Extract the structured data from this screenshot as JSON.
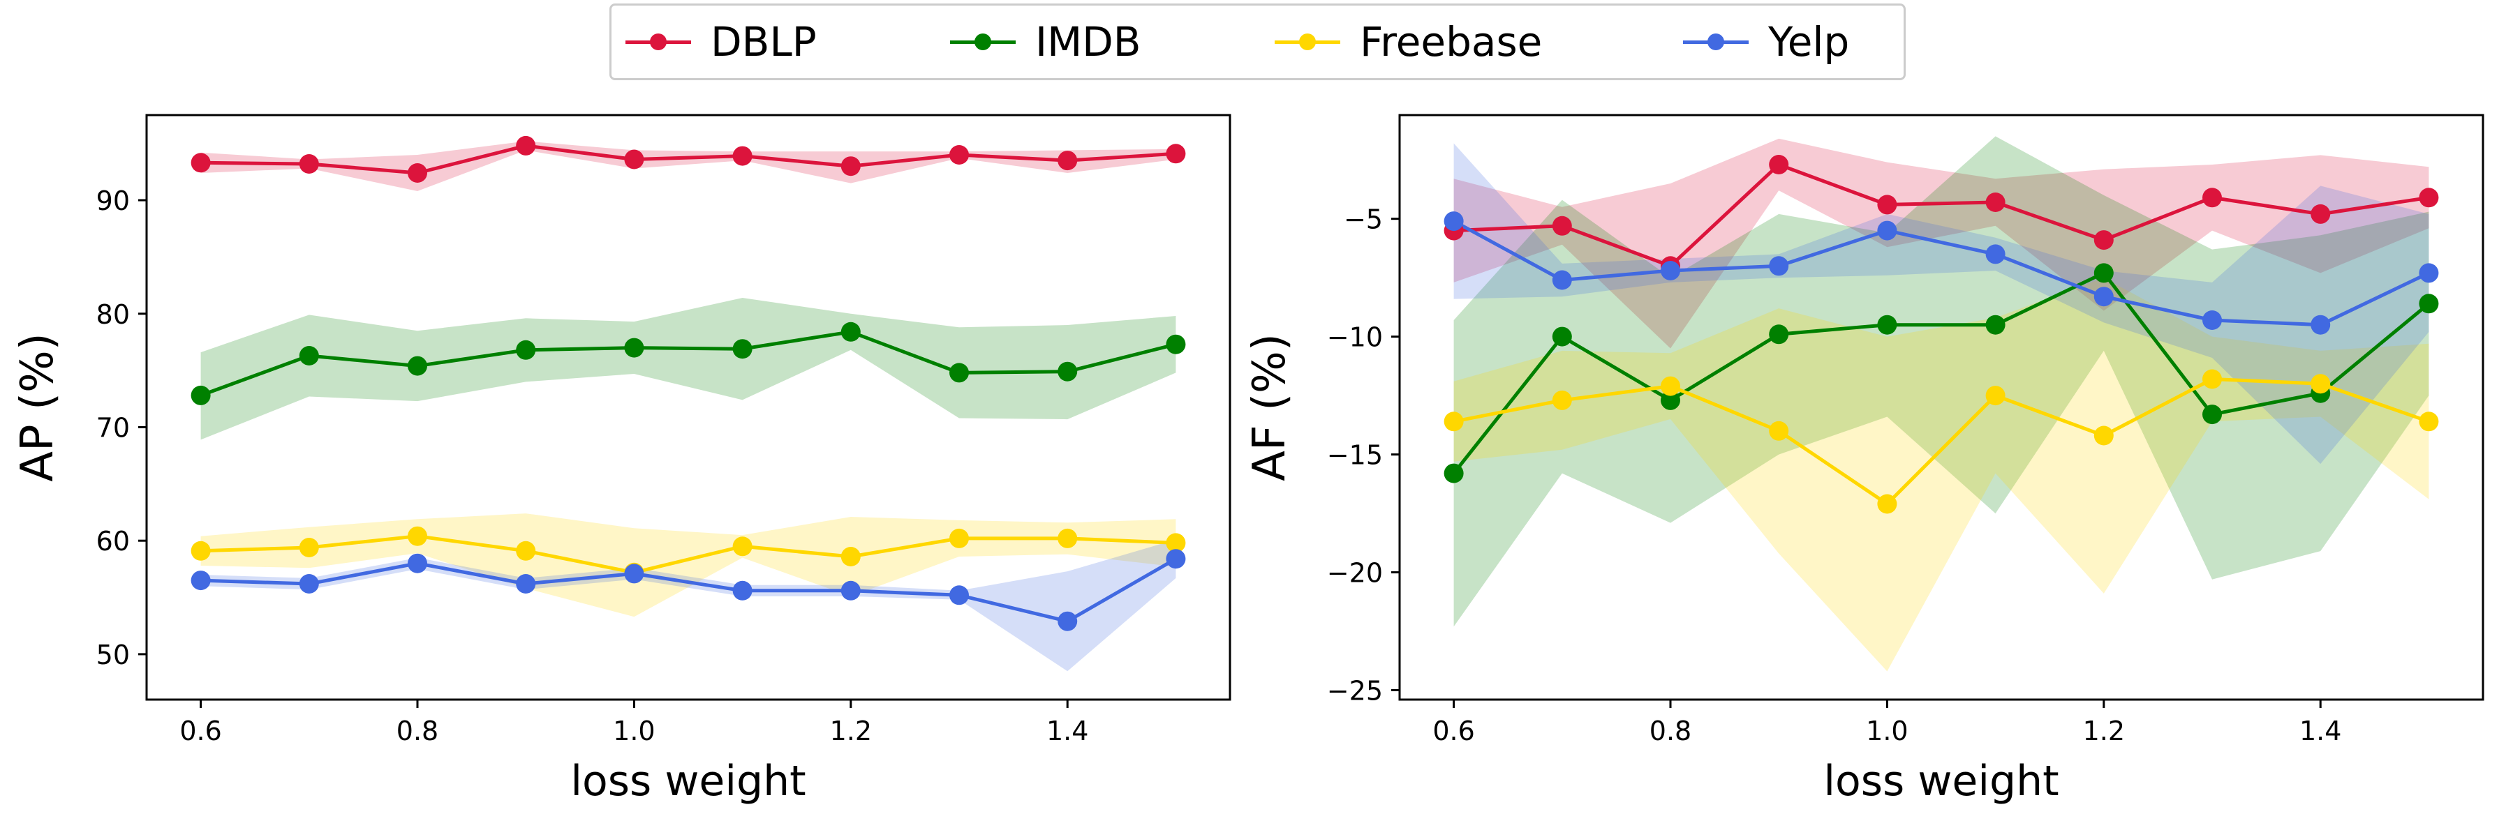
{
  "legend": [
    {
      "label": "DBLP",
      "color": "#dc143c"
    },
    {
      "label": "IMDB",
      "color": "#008000"
    },
    {
      "label": "Freebase",
      "color": "#ffd700"
    },
    {
      "label": "Yelp",
      "color": "#4169e1"
    }
  ],
  "chart_data": [
    {
      "type": "line",
      "ylabel": "AP (%)",
      "xlabel": "loss weight",
      "x": [
        0.6,
        0.7,
        0.8,
        0.9,
        1.0,
        1.1,
        1.2,
        1.3,
        1.4,
        1.5
      ],
      "xlim": [
        0.55,
        1.55
      ],
      "ylim": [
        46,
        97.5
      ],
      "xticks": [
        0.6,
        0.8,
        1.0,
        1.2,
        1.4
      ],
      "xtick_labels": [
        "0.6",
        "0.8",
        "1.0",
        "1.2",
        "1.4"
      ],
      "yticks": [
        50,
        60,
        70,
        80,
        90
      ],
      "ytick_labels": [
        "50",
        "60",
        "70",
        "80",
        "90"
      ],
      "series": [
        {
          "name": "DBLP",
          "color": "#dc143c",
          "values": [
            93.3,
            93.2,
            92.4,
            94.8,
            93.6,
            93.9,
            93.0,
            94.0,
            93.5,
            94.1
          ],
          "upper": [
            94.2,
            93.6,
            94.0,
            95.2,
            94.4,
            94.3,
            94.3,
            94.3,
            94.4,
            94.5
          ],
          "lower": [
            92.4,
            92.8,
            90.8,
            94.4,
            92.8,
            93.5,
            91.5,
            93.7,
            92.4,
            93.6
          ]
        },
        {
          "name": "IMDB",
          "color": "#008000",
          "values": [
            72.8,
            76.3,
            75.4,
            76.8,
            77.0,
            76.9,
            78.4,
            74.8,
            74.9,
            77.3
          ],
          "upper": [
            76.6,
            79.9,
            78.5,
            79.6,
            79.3,
            81.4,
            80.0,
            78.8,
            79.0,
            79.8
          ],
          "lower": [
            68.9,
            72.7,
            72.3,
            74.0,
            74.7,
            72.4,
            76.8,
            70.8,
            70.7,
            74.8
          ]
        },
        {
          "name": "Freebase",
          "color": "#ffd700",
          "values": [
            59.1,
            59.4,
            60.4,
            59.1,
            57.2,
            59.5,
            58.6,
            60.2,
            60.2,
            59.8
          ],
          "upper": [
            60.4,
            61.2,
            61.9,
            62.4,
            61.1,
            60.5,
            62.1,
            61.8,
            61.6,
            61.9
          ],
          "lower": [
            57.8,
            57.6,
            58.9,
            55.8,
            53.3,
            58.5,
            55.1,
            58.6,
            58.8,
            57.7
          ]
        },
        {
          "name": "Yelp",
          "color": "#4169e1",
          "values": [
            56.5,
            56.2,
            58.0,
            56.2,
            57.1,
            55.6,
            55.6,
            55.2,
            52.9,
            58.4
          ],
          "upper": [
            57.0,
            56.7,
            58.5,
            56.7,
            57.6,
            56.1,
            56.1,
            55.6,
            57.3,
            60.1
          ],
          "lower": [
            56.0,
            55.7,
            57.5,
            55.7,
            56.6,
            55.1,
            55.1,
            54.8,
            48.5,
            56.7
          ]
        }
      ]
    },
    {
      "type": "line",
      "ylabel": "AF (%)",
      "xlabel": "loss weight",
      "x": [
        0.6,
        0.7,
        0.8,
        0.9,
        1.0,
        1.1,
        1.2,
        1.3,
        1.4,
        1.5
      ],
      "xlim": [
        0.55,
        1.55
      ],
      "ylim": [
        -25.4,
        -0.6
      ],
      "xticks": [
        0.6,
        0.8,
        1.0,
        1.2,
        1.4
      ],
      "xtick_labels": [
        "0.6",
        "0.8",
        "1.0",
        "1.2",
        "1.4"
      ],
      "yticks": [
        -25,
        -20,
        -15,
        -10,
        -5
      ],
      "ytick_labels": [
        "−25",
        "−20",
        "−15",
        "−10",
        "−5"
      ],
      "series": [
        {
          "name": "DBLP",
          "color": "#dc143c",
          "values": [
            -5.5,
            -5.3,
            -7.0,
            -2.7,
            -4.4,
            -4.3,
            -5.9,
            -4.1,
            -4.8,
            -4.1
          ],
          "upper": [
            -3.3,
            -4.5,
            -3.5,
            -1.6,
            -2.6,
            -3.3,
            -2.9,
            -2.7,
            -2.3,
            -2.8
          ],
          "lower": [
            -7.7,
            -6.1,
            -10.5,
            -3.8,
            -6.2,
            -5.3,
            -8.9,
            -5.5,
            -7.3,
            -5.4
          ]
        },
        {
          "name": "IMDB",
          "color": "#008000",
          "values": [
            -15.8,
            -10.0,
            -12.7,
            -9.9,
            -9.5,
            -9.5,
            -7.3,
            -13.3,
            -12.4,
            -8.6
          ],
          "upper": [
            -9.3,
            -4.2,
            -7.5,
            -4.8,
            -5.6,
            -1.5,
            -4.0,
            -6.3,
            -5.7,
            -4.7
          ],
          "lower": [
            -22.3,
            -15.8,
            -17.9,
            -15.0,
            -13.4,
            -17.5,
            -10.6,
            -20.3,
            -19.1,
            -12.5
          ]
        },
        {
          "name": "Freebase",
          "color": "#ffd700",
          "values": [
            -13.6,
            -12.7,
            -12.1,
            -14.0,
            -17.1,
            -12.5,
            -14.2,
            -11.8,
            -12.0,
            -13.6
          ],
          "upper": [
            -11.9,
            -10.6,
            -10.7,
            -8.8,
            -10.0,
            -9.2,
            -7.5,
            -10.0,
            -10.6,
            -10.3
          ],
          "lower": [
            -15.3,
            -14.8,
            -13.5,
            -19.2,
            -24.2,
            -15.8,
            -20.9,
            -13.6,
            -13.4,
            -16.9
          ]
        },
        {
          "name": "Yelp",
          "color": "#4169e1",
          "values": [
            -5.1,
            -7.6,
            -7.2,
            -7.0,
            -5.5,
            -6.5,
            -8.3,
            -9.3,
            -9.5,
            -7.3
          ],
          "upper": [
            -1.8,
            -6.9,
            -6.7,
            -6.5,
            -4.8,
            -5.8,
            -7.2,
            -7.7,
            -3.6,
            -4.8
          ],
          "lower": [
            -8.4,
            -8.3,
            -7.7,
            -7.5,
            -7.4,
            -7.2,
            -9.4,
            -10.9,
            -15.4,
            -9.8
          ]
        }
      ]
    }
  ]
}
